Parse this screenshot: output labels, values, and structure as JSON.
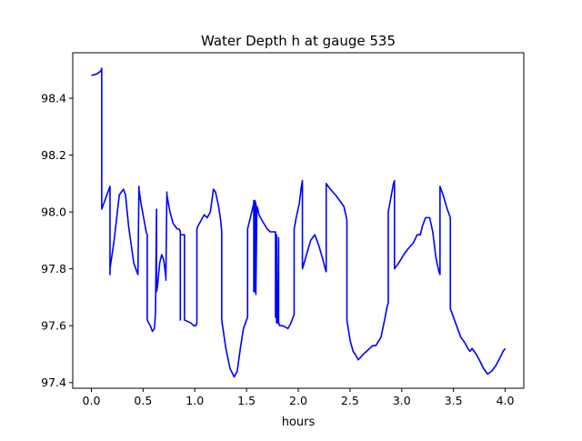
{
  "chart_data": {
    "type": "line",
    "title": "Water Depth h at gauge 535",
    "xlabel": "hours",
    "ylabel": "",
    "xlim": [
      -0.18,
      4.18
    ],
    "ylim": [
      97.38,
      98.56
    ],
    "xticks": [
      0.0,
      0.5,
      1.0,
      1.5,
      2.0,
      2.5,
      3.0,
      3.5,
      4.0
    ],
    "xtick_labels": [
      "0.0",
      "0.5",
      "1.0",
      "1.5",
      "2.0",
      "2.5",
      "3.0",
      "3.5",
      "4.0"
    ],
    "yticks": [
      97.4,
      97.6,
      97.8,
      98.0,
      98.2,
      98.4
    ],
    "ytick_labels": [
      "97.4",
      "97.6",
      "97.8",
      "98.0",
      "98.2",
      "98.4"
    ],
    "grid": false,
    "legend": "none",
    "colors": {
      "line": "#0000ff",
      "axes": "#000000",
      "background": "#ffffff"
    },
    "series": [
      {
        "x": [
          0.0,
          0.05,
          0.09,
          0.1,
          0.1,
          0.13,
          0.18,
          0.18,
          0.18,
          0.22,
          0.27,
          0.31,
          0.33,
          0.36,
          0.41,
          0.45,
          0.46,
          0.46,
          0.48,
          0.5,
          0.53,
          0.54,
          0.54,
          0.57,
          0.59,
          0.61,
          0.62,
          0.63,
          0.63,
          0.64,
          0.66,
          0.68,
          0.7,
          0.72,
          0.72,
          0.73,
          0.73,
          0.76,
          0.79,
          0.83,
          0.85,
          0.86,
          0.86,
          0.86,
          0.9,
          0.9,
          0.96,
          0.99,
          1.01,
          1.02,
          1.02,
          1.03,
          1.06,
          1.09,
          1.12,
          1.15,
          1.18,
          1.2,
          1.23,
          1.25,
          1.26,
          1.26,
          1.3,
          1.34,
          1.38,
          1.41,
          1.44,
          1.47,
          1.5,
          1.51,
          1.51,
          1.55,
          1.57,
          1.57,
          1.57,
          1.58,
          1.58,
          1.58,
          1.59,
          1.59,
          1.6,
          1.61,
          1.62,
          1.65,
          1.7,
          1.73,
          1.76,
          1.78,
          1.78,
          1.79,
          1.79,
          1.8,
          1.81,
          1.81,
          1.82,
          1.85,
          1.9,
          1.93,
          1.95,
          1.96,
          1.96,
          1.98,
          2.01,
          2.03,
          2.04,
          2.04,
          2.08,
          2.12,
          2.16,
          2.2,
          2.24,
          2.26,
          2.27,
          2.27,
          2.31,
          2.36,
          2.4,
          2.44,
          2.46,
          2.47,
          2.47,
          2.5,
          2.53,
          2.55,
          2.58,
          2.63,
          2.66,
          2.69,
          2.72,
          2.75,
          2.8,
          2.84,
          2.86,
          2.87,
          2.87,
          2.9,
          2.92,
          2.93,
          2.93,
          2.97,
          3.02,
          3.06,
          3.11,
          3.15,
          3.18,
          3.2,
          3.23,
          3.27,
          3.3,
          3.33,
          3.36,
          3.37,
          3.37,
          3.4,
          3.44,
          3.46,
          3.47,
          3.47,
          3.52,
          3.57,
          3.61,
          3.64,
          3.66,
          3.68,
          3.72,
          3.75,
          3.79,
          3.83,
          3.87,
          3.91,
          3.94,
          3.98,
          4.0
        ],
        "y": [
          98.48,
          98.485,
          98.495,
          98.505,
          98.01,
          98.04,
          98.09,
          97.78,
          97.8,
          97.9,
          98.06,
          98.08,
          98.06,
          97.95,
          97.82,
          97.78,
          98.09,
          98.08,
          98.03,
          97.99,
          97.93,
          97.92,
          97.62,
          97.6,
          97.58,
          97.59,
          97.65,
          98.01,
          97.72,
          97.74,
          97.82,
          97.85,
          97.83,
          97.77,
          97.76,
          98.07,
          98.06,
          98.0,
          97.96,
          97.94,
          97.94,
          97.93,
          97.62,
          97.92,
          97.92,
          97.62,
          97.61,
          97.6,
          97.6,
          97.61,
          97.94,
          97.95,
          97.97,
          97.99,
          97.98,
          98.0,
          98.08,
          98.07,
          98.02,
          97.97,
          97.93,
          97.62,
          97.52,
          97.45,
          97.42,
          97.44,
          97.52,
          97.59,
          97.62,
          97.63,
          97.94,
          98.0,
          98.03,
          97.72,
          98.04,
          98.04,
          97.72,
          98.04,
          98.03,
          97.71,
          98.02,
          98.01,
          97.99,
          97.97,
          97.94,
          97.93,
          97.93,
          97.93,
          97.63,
          97.92,
          97.61,
          97.61,
          97.91,
          97.61,
          97.6,
          97.6,
          97.59,
          97.61,
          97.63,
          97.64,
          97.94,
          97.98,
          98.03,
          98.09,
          98.11,
          97.8,
          97.85,
          97.9,
          97.92,
          97.88,
          97.83,
          97.8,
          97.79,
          98.1,
          98.08,
          98.06,
          98.04,
          98.02,
          97.99,
          97.97,
          97.62,
          97.55,
          97.51,
          97.5,
          97.48,
          97.5,
          97.51,
          97.52,
          97.53,
          97.53,
          97.56,
          97.63,
          97.67,
          97.68,
          98.0,
          98.06,
          98.1,
          98.11,
          97.8,
          97.82,
          97.85,
          97.87,
          97.89,
          97.92,
          97.92,
          97.95,
          97.98,
          97.98,
          97.93,
          97.84,
          97.79,
          97.78,
          98.09,
          98.06,
          98.01,
          97.99,
          97.98,
          97.66,
          97.61,
          97.56,
          97.54,
          97.52,
          97.51,
          97.52,
          97.5,
          97.48,
          97.45,
          97.43,
          97.44,
          97.46,
          97.48,
          97.51,
          97.52
        ]
      }
    ]
  }
}
